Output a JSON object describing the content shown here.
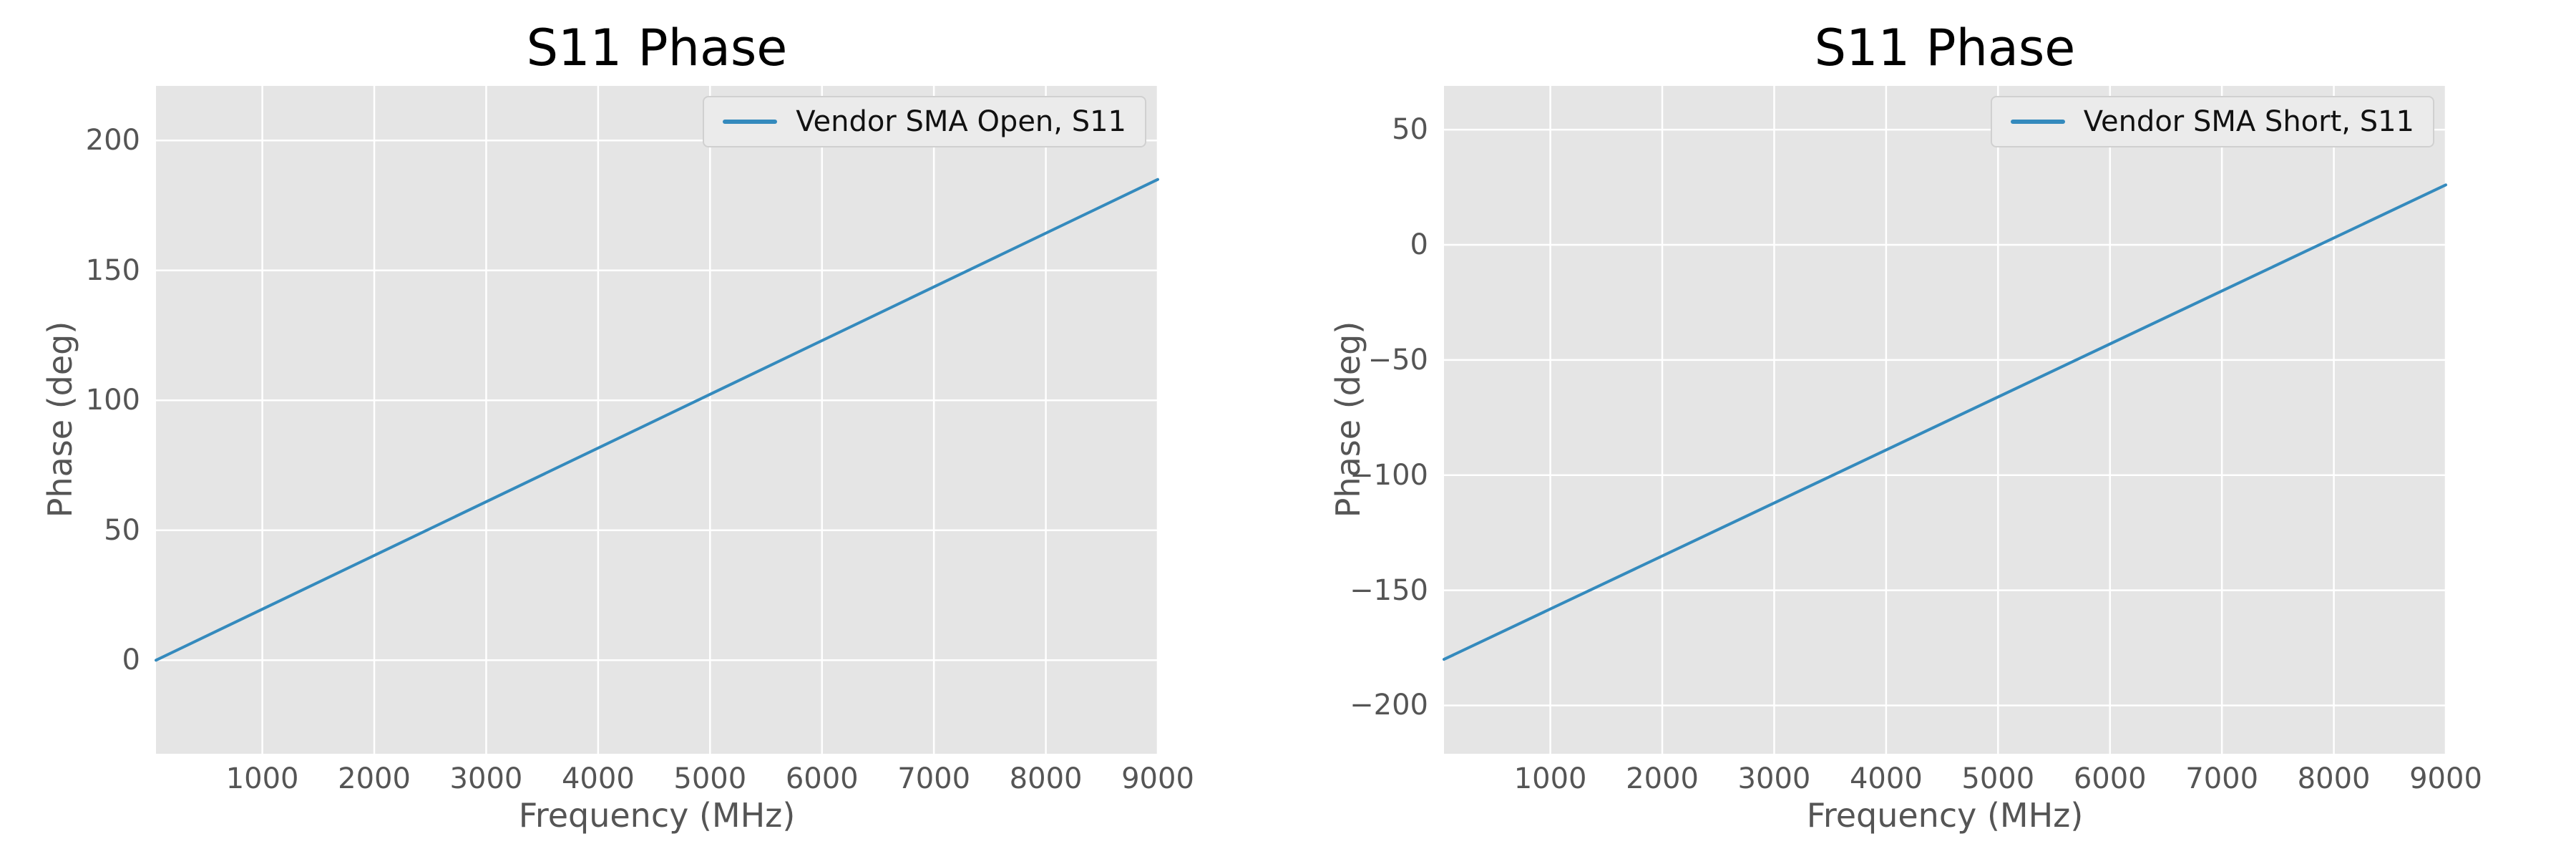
{
  "style": {
    "figure_background": "#ffffff",
    "axes_background": "#e5e5e5",
    "grid_color": "#ffffff",
    "tick_label_color": "#555555",
    "title_color": "#000000",
    "legend_background": "#ebebeb",
    "legend_border": "#d0d0d0",
    "line_color": "#348abd"
  },
  "chart_data": [
    {
      "type": "line",
      "title": "S11 Phase",
      "xlabel": "Frequency (MHz)",
      "ylabel": "Phase (deg)",
      "xlim": [
        50,
        9000
      ],
      "ylim": [
        -36,
        221
      ],
      "x_ticks": [
        1000,
        2000,
        3000,
        4000,
        5000,
        6000,
        7000,
        8000,
        9000
      ],
      "y_ticks": [
        0,
        50,
        100,
        150,
        200
      ],
      "grid": true,
      "legend_position": "upper right",
      "series": [
        {
          "name": "Vendor SMA Open, S11",
          "color": "#348abd",
          "x": [
            50,
            9000
          ],
          "y": [
            0,
            185
          ]
        }
      ]
    },
    {
      "type": "line",
      "title": "S11 Phase",
      "xlabel": "Frequency (MHz)",
      "ylabel": "Phase (deg)",
      "xlim": [
        50,
        9000
      ],
      "ylim": [
        -221,
        69
      ],
      "x_ticks": [
        1000,
        2000,
        3000,
        4000,
        5000,
        6000,
        7000,
        8000,
        9000
      ],
      "y_ticks": [
        -200,
        -150,
        -100,
        -50,
        0,
        50
      ],
      "grid": true,
      "legend_position": "upper right",
      "series": [
        {
          "name": "Vendor SMA Short, S11",
          "color": "#348abd",
          "x": [
            50,
            9000
          ],
          "y": [
            -180,
            26
          ]
        }
      ]
    }
  ]
}
